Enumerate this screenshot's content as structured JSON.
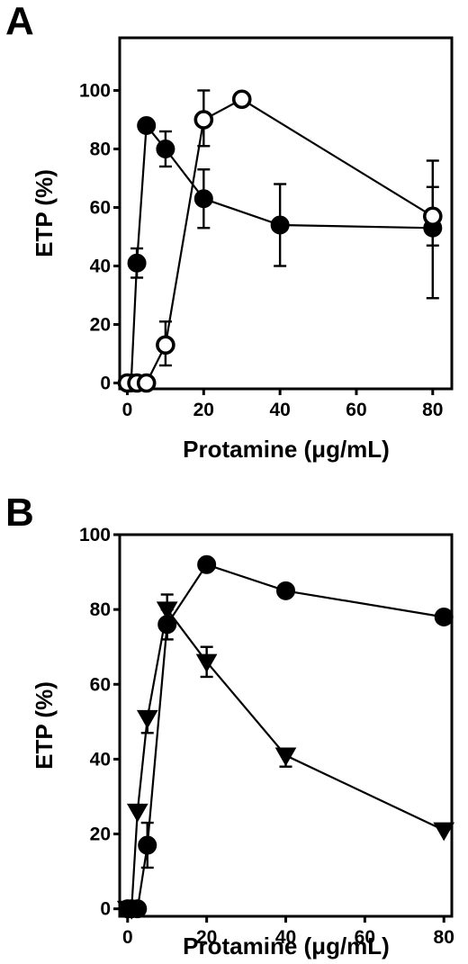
{
  "chart_data": [
    {
      "panel_label": "A",
      "type": "line",
      "xlabel": "Protamine (μg/mL)",
      "ylabel": "ETP (%)",
      "xlim": [
        -2,
        85
      ],
      "ylim": [
        -2,
        118
      ],
      "xticks": [
        0,
        20,
        40,
        60,
        80
      ],
      "yticks": [
        0,
        20,
        40,
        60,
        80,
        100
      ],
      "grid": false,
      "series": [
        {
          "marker": "filled-circle",
          "x": [
            0,
            1,
            2.5,
            5,
            10,
            20,
            40,
            80
          ],
          "y": [
            0,
            0,
            41,
            88,
            80,
            63,
            54,
            53
          ],
          "err_plus": [
            0,
            0,
            5,
            0,
            6,
            10,
            14,
            14
          ],
          "err_minus": [
            0,
            0,
            5,
            0,
            6,
            10,
            14,
            24
          ]
        },
        {
          "marker": "open-circle",
          "x": [
            0,
            2.5,
            5,
            10,
            20,
            30,
            80
          ],
          "y": [
            0,
            0,
            0,
            13,
            90,
            97,
            57
          ],
          "err_plus": [
            0,
            0,
            0,
            8,
            10,
            0,
            19
          ],
          "err_minus": [
            0,
            0,
            0,
            7,
            9,
            0,
            10
          ]
        }
      ]
    },
    {
      "panel_label": "B",
      "type": "line",
      "xlabel": "Protamine (μg/mL)",
      "ylabel": "ETP (%)",
      "xlim": [
        -2,
        82
      ],
      "ylim": [
        -2,
        100
      ],
      "xticks": [
        0,
        20,
        40,
        60,
        80
      ],
      "yticks": [
        0,
        20,
        40,
        60,
        80,
        100
      ],
      "grid": false,
      "series": [
        {
          "marker": "filled-circle",
          "x": [
            0,
            1,
            2.5,
            5,
            10,
            20,
            40,
            80
          ],
          "y": [
            0,
            0,
            0,
            17,
            76,
            92,
            85,
            78
          ],
          "err_plus": [
            0,
            0,
            0,
            6,
            4,
            0,
            0,
            0
          ],
          "err_minus": [
            0,
            0,
            0,
            6,
            4,
            0,
            0,
            0
          ]
        },
        {
          "marker": "filled-triangle-down",
          "x": [
            0,
            1,
            2.5,
            5,
            10,
            20,
            40,
            80
          ],
          "y": [
            0,
            0,
            26,
            51,
            80,
            66,
            41,
            21
          ],
          "err_plus": [
            0,
            0,
            0,
            0,
            4,
            4,
            0,
            0
          ],
          "err_minus": [
            0,
            0,
            0,
            4,
            4,
            4,
            3,
            0
          ]
        }
      ]
    }
  ]
}
